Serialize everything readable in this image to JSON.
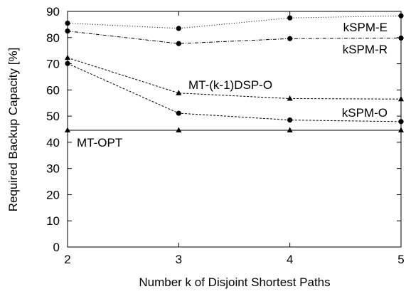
{
  "chart_data": {
    "type": "line",
    "xlabel": "Number k of Disjoint Shortest Paths",
    "ylabel": "Required Backup Capacity [%]",
    "x": [
      2,
      3,
      4,
      5
    ],
    "xlim": [
      2,
      5
    ],
    "ylim": [
      0,
      90
    ],
    "xticks": [
      2,
      3,
      4,
      5
    ],
    "yticks": [
      0,
      10,
      20,
      30,
      40,
      50,
      60,
      70,
      80,
      90
    ],
    "grid": false,
    "series": [
      {
        "name": "kSPM-E",
        "values": [
          85.5,
          83.5,
          87.5,
          88.3
        ],
        "marker": "circle",
        "dash": "1,2.5",
        "color": "#000000"
      },
      {
        "name": "kSPM-R",
        "values": [
          82.5,
          77.7,
          79.6,
          79.8
        ],
        "marker": "circle",
        "dash": "5,2,1,2",
        "color": "#000000"
      },
      {
        "name": "MT-(k-1)DSP-O",
        "values": [
          72.3,
          58.8,
          56.7,
          56.5
        ],
        "marker": "triangle",
        "dash": "3,2",
        "color": "#000000"
      },
      {
        "name": "kSPM-O",
        "values": [
          70.1,
          51.1,
          48.5,
          47.9
        ],
        "marker": "circle",
        "dash": "3,2",
        "color": "#000000"
      },
      {
        "name": "MT-OPT",
        "values": [
          44.6,
          44.6,
          44.6,
          44.6
        ],
        "marker": "triangle",
        "dash": "none",
        "color": "#000000"
      }
    ]
  }
}
